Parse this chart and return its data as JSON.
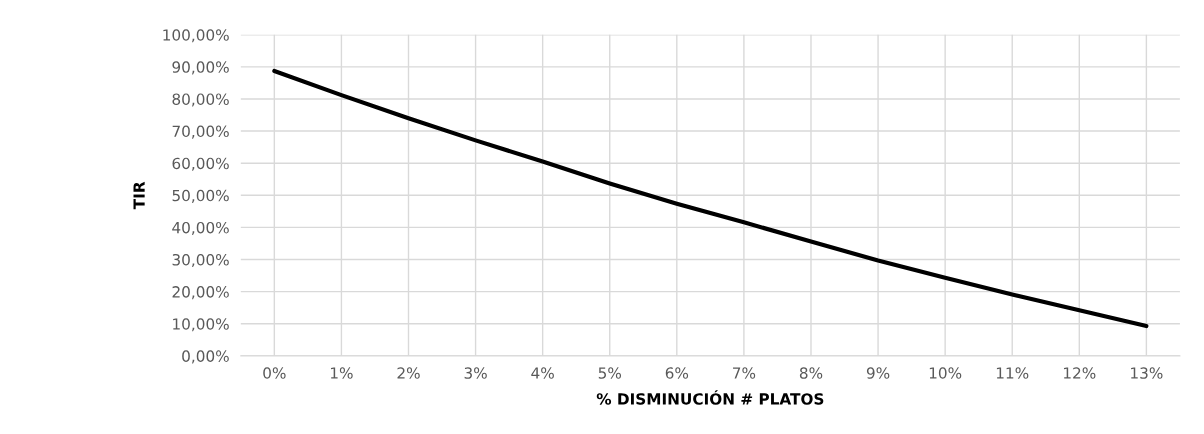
{
  "chart_data": {
    "type": "line",
    "xlabel": "% DISMINUCIÓN # PLATOS",
    "ylabel": "TIR",
    "categories": [
      "0%",
      "1%",
      "2%",
      "3%",
      "4%",
      "5%",
      "6%",
      "7%",
      "8%",
      "9%",
      "10%",
      "11%",
      "12%",
      "13%"
    ],
    "series": [
      {
        "color": "#000000",
        "values": [
          88.7,
          81.2,
          74.0,
          67.1,
          60.5,
          53.7,
          47.4,
          41.6,
          35.6,
          29.7,
          24.3,
          19.1,
          14.2,
          9.3
        ]
      }
    ],
    "ylim": [
      0,
      100
    ],
    "yticks": [
      {
        "value": 0,
        "label": "0,00%"
      },
      {
        "value": 10,
        "label": "10,00%"
      },
      {
        "value": 20,
        "label": "20,00%"
      },
      {
        "value": 30,
        "label": "30,00%"
      },
      {
        "value": 40,
        "label": "40,00%"
      },
      {
        "value": 50,
        "label": "50,00%"
      },
      {
        "value": 60,
        "label": "60,00%"
      },
      {
        "value": 70,
        "label": "70,00%"
      },
      {
        "value": 80,
        "label": "80,00%"
      },
      {
        "value": 90,
        "label": "90,00%"
      },
      {
        "value": 100,
        "label": "100,00%"
      }
    ],
    "grid": true,
    "marker": "none",
    "line_style": "solid"
  }
}
